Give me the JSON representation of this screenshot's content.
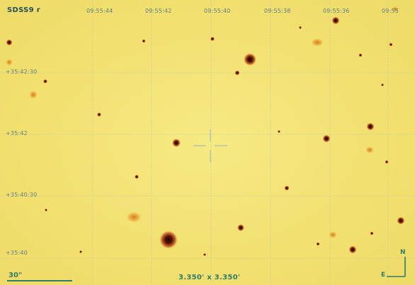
{
  "survey_label": "SDSS9 r",
  "ra_ticks": [
    "09:55:44",
    "09:55:42",
    "09:55:40",
    "09:55:38",
    "09:55:36",
    "09:55"
  ],
  "dec_ticks": [
    "+35:42:30",
    "+35:42",
    "+35:40:30",
    "+35:40"
  ],
  "scale_label": "30\"",
  "fov_label": "3.350' x 3.350'",
  "compass": {
    "north": "N",
    "east": "E"
  },
  "colors": {
    "background": "#f2e070",
    "grid": "#c9cf9c",
    "label": "#2f7d6a",
    "star_core": "#2a0b08",
    "star_halo": "#b8401a"
  }
}
